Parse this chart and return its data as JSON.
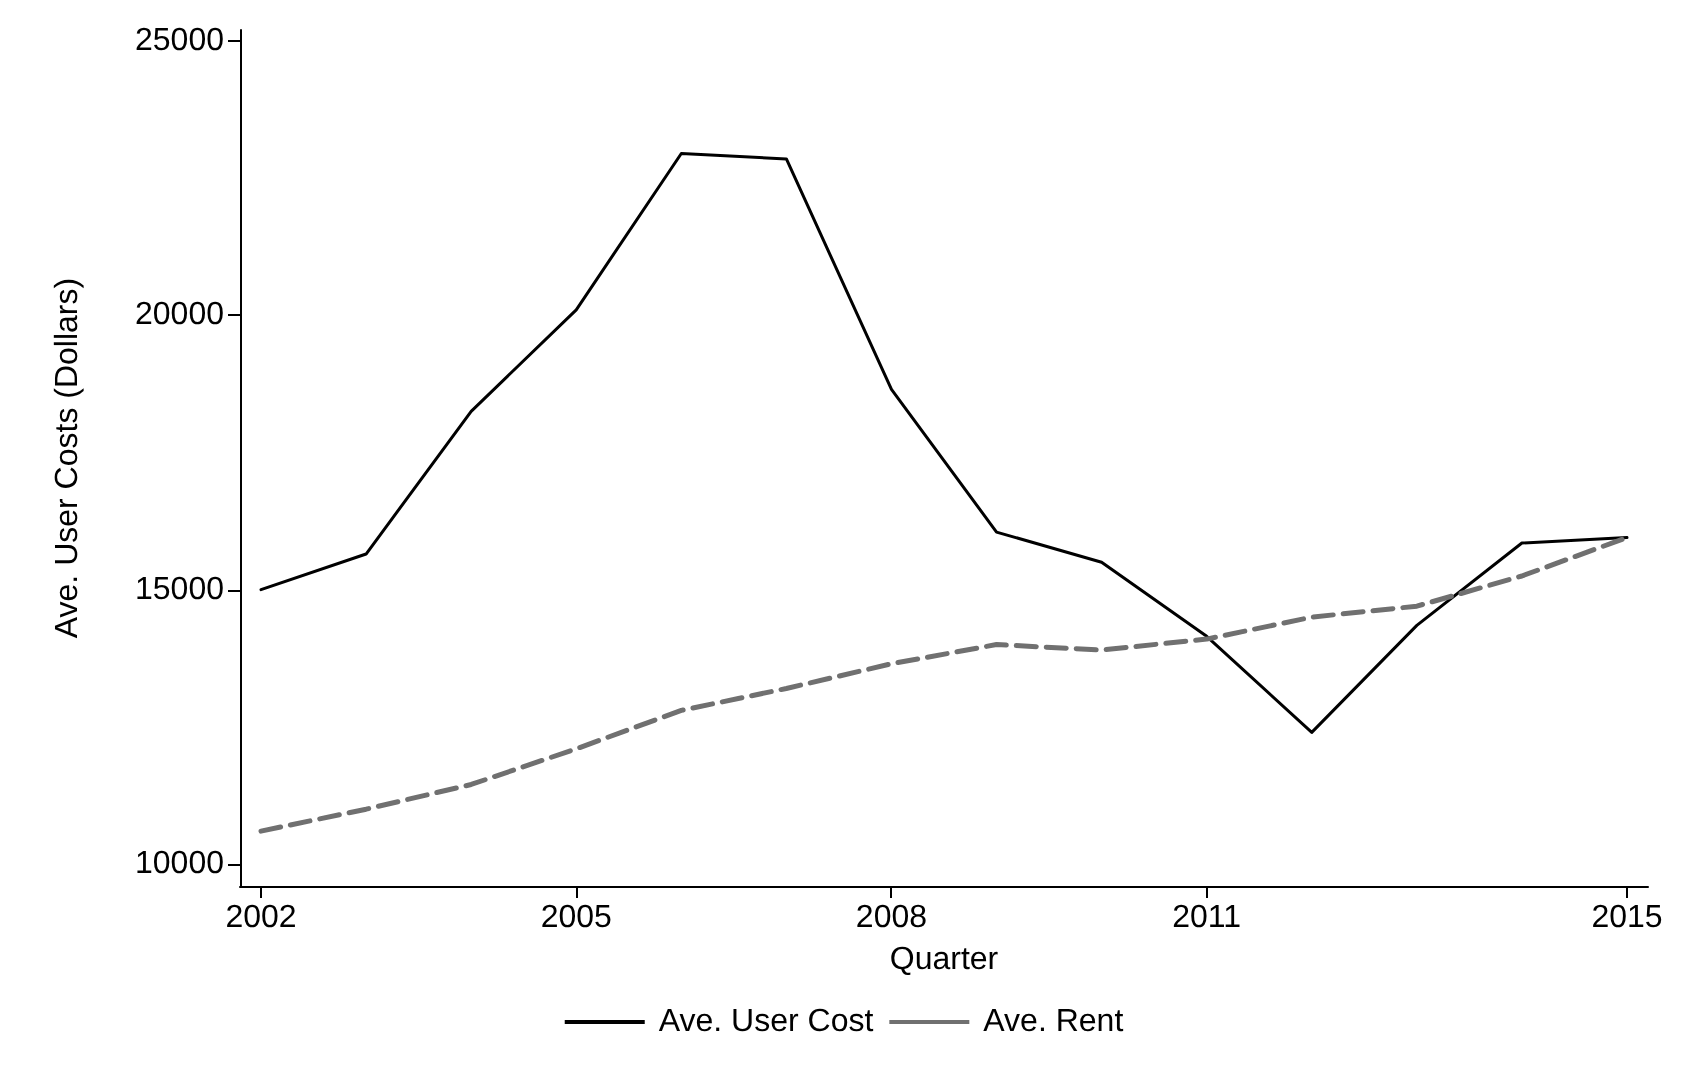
{
  "chart_data": {
    "type": "line",
    "xlabel": "Quarter",
    "ylabel": "Ave. User Costs (Dollars)",
    "x": [
      2002,
      2003,
      2004,
      2005,
      2006,
      2007,
      2008,
      2009,
      2010,
      2011,
      2012,
      2013,
      2014,
      2015
    ],
    "xlim": [
      2001.8,
      2015.2
    ],
    "xticks": [
      2002,
      2005,
      2008,
      2011,
      2015
    ],
    "ylim": [
      9600,
      25200
    ],
    "yticks": [
      10000,
      15000,
      20000,
      25000
    ],
    "grid": false,
    "legend": "bottom",
    "marker": "none",
    "series": [
      {
        "name": "Ave. User Cost",
        "color": "#000000",
        "line_style": "solid",
        "values": [
          15000,
          15650,
          18250,
          20100,
          22950,
          22850,
          18650,
          16050,
          15500,
          14150,
          12400,
          14350,
          15850,
          15950
        ]
      },
      {
        "name": "Ave. Rent",
        "color": "#707070",
        "line_style": "dashed",
        "values": [
          10600,
          11000,
          11450,
          12100,
          12800,
          13200,
          13650,
          14000,
          13900,
          14100,
          14500,
          14700,
          15250,
          15950
        ]
      }
    ]
  }
}
